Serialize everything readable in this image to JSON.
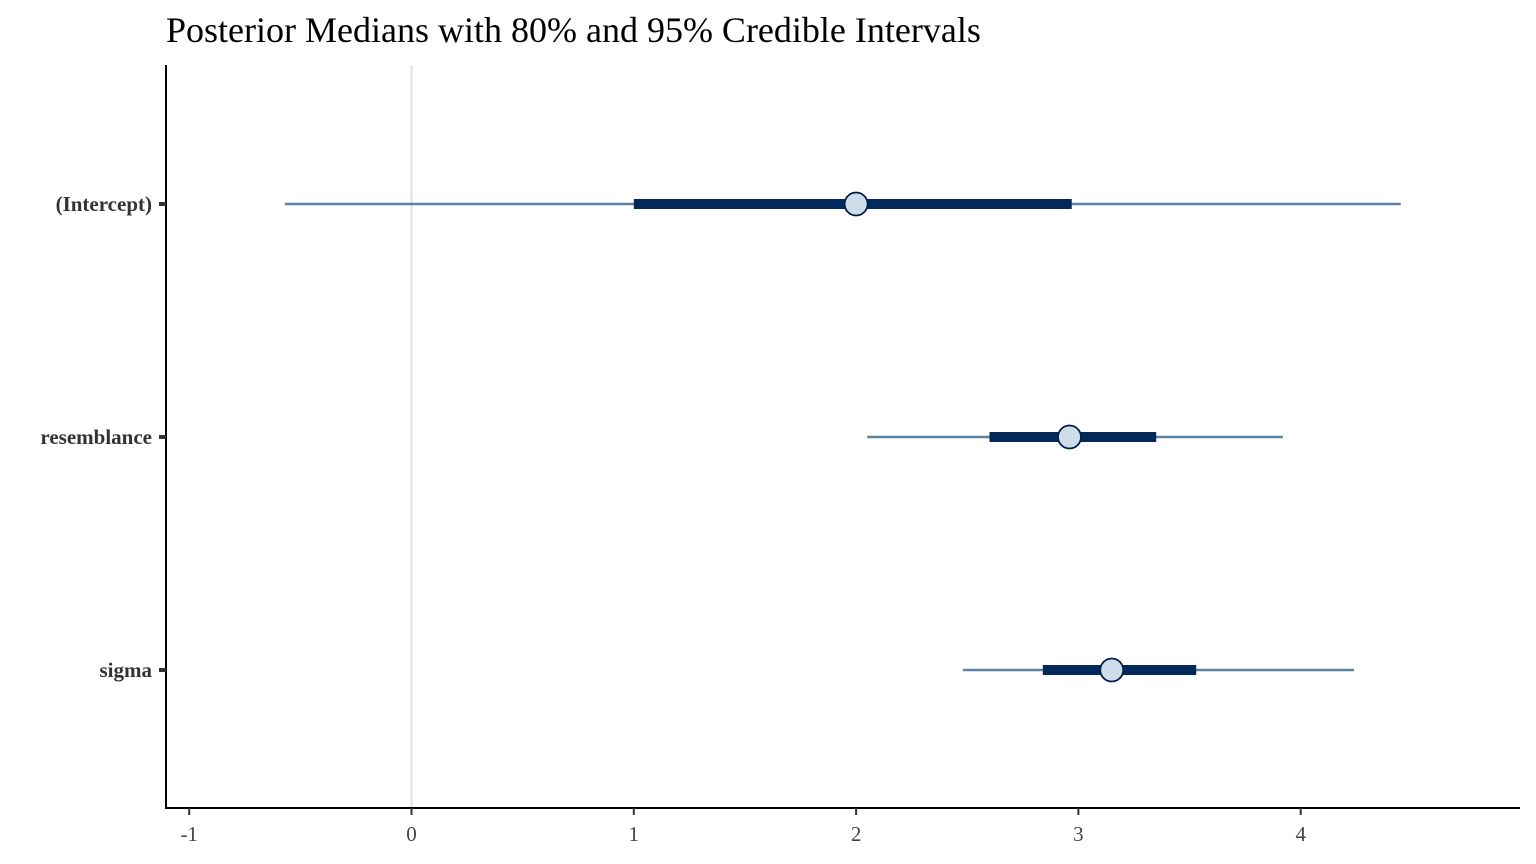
{
  "chart_data": {
    "type": "interval",
    "title": "Posterior Medians with 80% and 95% Credible Intervals",
    "xlabel": "",
    "ylabel": "",
    "xlim": [
      -1.1,
      4.9
    ],
    "x_ticks": [
      -1,
      0,
      1,
      2,
      3,
      4
    ],
    "x_tick_labels": [
      "-1",
      "0",
      "1",
      "2",
      "3",
      "4"
    ],
    "reference_line": 0,
    "grid": false,
    "parameters": [
      {
        "name": "(Intercept)",
        "median": 2.0,
        "ci80": [
          1.0,
          2.97
        ],
        "ci95": [
          -0.57,
          4.45
        ]
      },
      {
        "name": "resemblance",
        "median": 2.96,
        "ci80": [
          2.6,
          3.35
        ],
        "ci95": [
          2.05,
          3.92
        ]
      },
      {
        "name": "sigma",
        "median": 3.15,
        "ci80": [
          2.84,
          3.53
        ],
        "ci95": [
          2.48,
          4.24
        ]
      }
    ],
    "colors": {
      "outer_interval": "#5b84a0",
      "inner_interval": "#03295a",
      "point_fill": "#cddde9",
      "point_stroke": "#011f4b",
      "reference_line": "#e0e0e0",
      "axis": "#000000"
    }
  }
}
